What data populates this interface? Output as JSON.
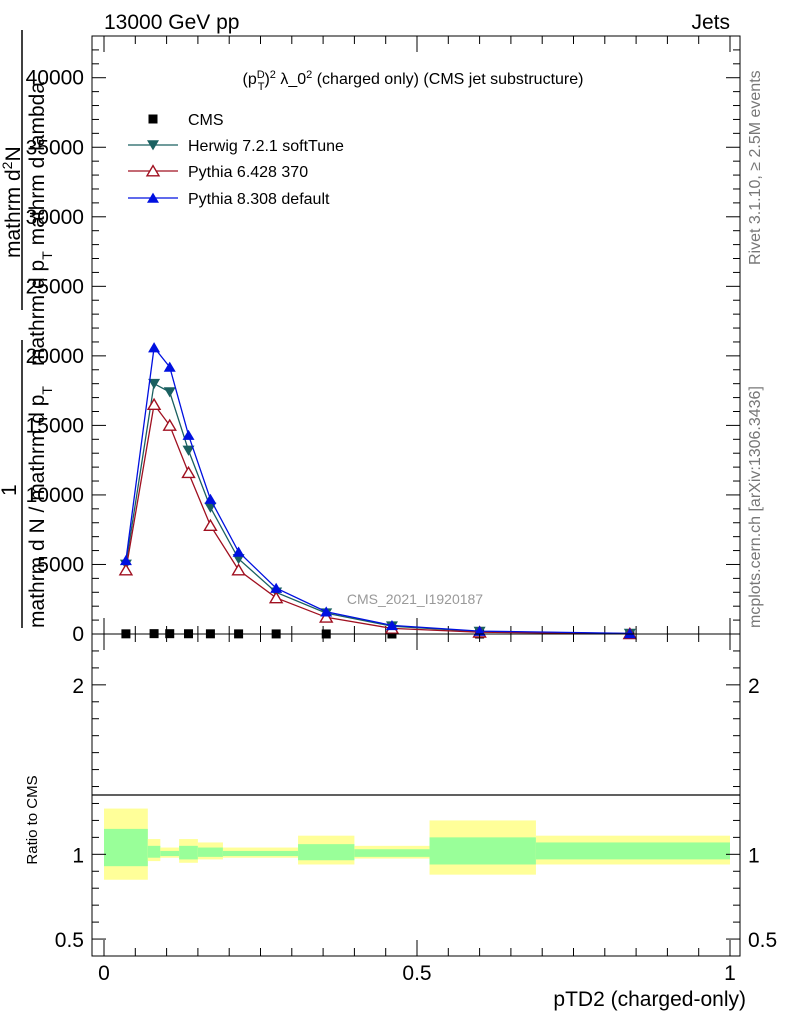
{
  "header": {
    "left": "13000 GeV pp",
    "right": "Jets"
  },
  "side_labels": {
    "rivet": "Rivet 3.1.10, ≥ 2.5M events",
    "mcplots": "mcplots.cern.ch [arXiv:1306.3436]"
  },
  "chart_data": [
    {
      "type": "line",
      "title_parts": {
        "pre": "(p",
        "sup1": "D",
        "sub1": "T",
        "post1": ")",
        "sup2": "2",
        "post2": " λ_0",
        "sup3": "2",
        "post3": " (charged only) (CMS jet substructure)"
      },
      "ylabel_parts": {
        "numer_1": "mathrm d",
        "numer_sup": "2",
        "numer_2": "N",
        "denom_1": "mathrm d p",
        "denom_sub1": "T",
        "denom_2": " mathrm d lambda",
        "prefix_numer": "1",
        "prefix_denom_1": "mathrm d N / mathrm d p",
        "prefix_denom_sub": "T"
      },
      "xlim": [
        0,
        1
      ],
      "ylim": [
        0,
        43000
      ],
      "yticks": [
        0,
        5000,
        10000,
        15000,
        20000,
        25000,
        30000,
        35000,
        40000
      ],
      "ytick_labels": [
        "0",
        "5000",
        "10000",
        "15000",
        "20000",
        "25000",
        "30000",
        "35000",
        "40000"
      ],
      "watermark": "CMS_2021_I1920187",
      "legend_position": "top-left",
      "series": [
        {
          "name": "CMS",
          "color": "#000000",
          "marker": "square",
          "x": [
            0.035,
            0.08,
            0.105,
            0.135,
            0.17,
            0.215,
            0.275,
            0.355,
            0.46,
            0.6,
            0.84
          ],
          "y": [
            12,
            25,
            22,
            18,
            13,
            9,
            6,
            3,
            1,
            0.5,
            0.2
          ]
        },
        {
          "name": "Herwig 7.2.1 softTune",
          "color": "#1a6060",
          "marker": "triangle-down",
          "x": [
            0.035,
            0.08,
            0.105,
            0.135,
            0.17,
            0.215,
            0.275,
            0.355,
            0.46,
            0.6,
            0.84
          ],
          "y": [
            5000,
            18000,
            17400,
            13200,
            9100,
            5400,
            3000,
            1500,
            560,
            180,
            30
          ]
        },
        {
          "name": "Pythia 6.428 370",
          "color": "#a01020",
          "marker": "triangle-up-open",
          "x": [
            0.035,
            0.08,
            0.105,
            0.135,
            0.17,
            0.215,
            0.275,
            0.355,
            0.46,
            0.6,
            0.84
          ],
          "y": [
            4600,
            16500,
            15000,
            11600,
            7800,
            4600,
            2600,
            1200,
            400,
            130,
            20
          ]
        },
        {
          "name": "Pythia 8.308 default",
          "color": "#0010e0",
          "marker": "triangle-up",
          "x": [
            0.035,
            0.08,
            0.105,
            0.135,
            0.17,
            0.215,
            0.275,
            0.355,
            0.46,
            0.6,
            0.84
          ],
          "y": [
            5300,
            20600,
            19200,
            14300,
            9700,
            5900,
            3300,
            1600,
            620,
            210,
            40
          ]
        }
      ]
    },
    {
      "type": "area",
      "ylabel": "Ratio to CMS",
      "xlabel": "pTD2 (charged-only)",
      "xlim": [
        0,
        1
      ],
      "ylim": [
        0.4,
        2.3
      ],
      "xticks": [
        0,
        0.5,
        1
      ],
      "xtick_labels": [
        "0",
        "0.5",
        "1"
      ],
      "yticks": [
        0.5,
        1,
        2
      ],
      "ytick_labels": [
        "0.5",
        "1",
        "2"
      ],
      "bands": [
        {
          "x0": 0.0,
          "x1": 0.07,
          "outer": [
            0.85,
            1.27
          ],
          "inner": [
            0.93,
            1.15
          ]
        },
        {
          "x0": 0.07,
          "x1": 0.09,
          "outer": [
            0.96,
            1.09
          ],
          "inner": [
            0.98,
            1.05
          ]
        },
        {
          "x0": 0.09,
          "x1": 0.12,
          "outer": [
            0.98,
            1.04
          ],
          "inner": [
            0.99,
            1.02
          ]
        },
        {
          "x0": 0.12,
          "x1": 0.15,
          "outer": [
            0.95,
            1.09
          ],
          "inner": [
            0.97,
            1.05
          ]
        },
        {
          "x0": 0.15,
          "x1": 0.19,
          "outer": [
            0.97,
            1.07
          ],
          "inner": [
            0.985,
            1.04
          ]
        },
        {
          "x0": 0.19,
          "x1": 0.31,
          "outer": [
            0.98,
            1.04
          ],
          "inner": [
            0.99,
            1.02
          ]
        },
        {
          "x0": 0.31,
          "x1": 0.4,
          "outer": [
            0.94,
            1.11
          ],
          "inner": [
            0.965,
            1.06
          ]
        },
        {
          "x0": 0.4,
          "x1": 0.52,
          "outer": [
            0.975,
            1.05
          ],
          "inner": [
            0.985,
            1.03
          ]
        },
        {
          "x0": 0.52,
          "x1": 0.69,
          "outer": [
            0.88,
            1.2
          ],
          "inner": [
            0.94,
            1.1
          ]
        },
        {
          "x0": 0.69,
          "x1": 1.0,
          "outer": [
            0.94,
            1.11
          ],
          "inner": [
            0.97,
            1.07
          ]
        }
      ]
    }
  ]
}
